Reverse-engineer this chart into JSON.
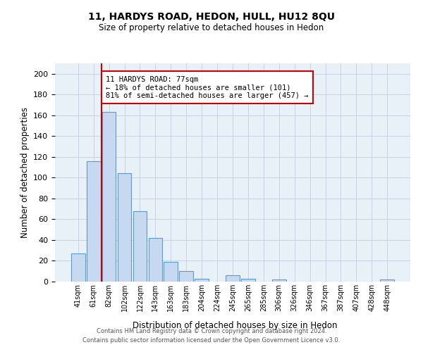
{
  "title": "11, HARDYS ROAD, HEDON, HULL, HU12 8QU",
  "subtitle": "Size of property relative to detached houses in Hedon",
  "xlabel": "Distribution of detached houses by size in Hedon",
  "ylabel": "Number of detached properties",
  "bar_labels": [
    "41sqm",
    "61sqm",
    "82sqm",
    "102sqm",
    "122sqm",
    "143sqm",
    "163sqm",
    "183sqm",
    "204sqm",
    "224sqm",
    "245sqm",
    "265sqm",
    "285sqm",
    "306sqm",
    "326sqm",
    "346sqm",
    "367sqm",
    "387sqm",
    "407sqm",
    "428sqm",
    "448sqm"
  ],
  "bar_values": [
    27,
    116,
    163,
    104,
    68,
    42,
    19,
    10,
    3,
    0,
    6,
    3,
    0,
    2,
    0,
    0,
    0,
    0,
    0,
    0,
    2
  ],
  "bar_color": "#c6d9f0",
  "bar_edge_color": "#5b9bd5",
  "ylim": [
    0,
    210
  ],
  "yticks": [
    0,
    20,
    40,
    60,
    80,
    100,
    120,
    140,
    160,
    180,
    200
  ],
  "property_line_x": 1.5,
  "annotation_title": "11 HARDYS ROAD: 77sqm",
  "annotation_line1": "← 18% of detached houses are smaller (101)",
  "annotation_line2": "81% of semi-detached houses are larger (457) →",
  "footer_line1": "Contains HM Land Registry data © Crown copyright and database right 2024.",
  "footer_line2": "Contains public sector information licensed under the Open Government Licence v3.0.",
  "background_color": "#ffffff",
  "grid_color": "#c8d4e3",
  "annotation_box_color": "#ffffff",
  "annotation_box_edge": "#cc0000",
  "property_line_color": "#cc0000"
}
